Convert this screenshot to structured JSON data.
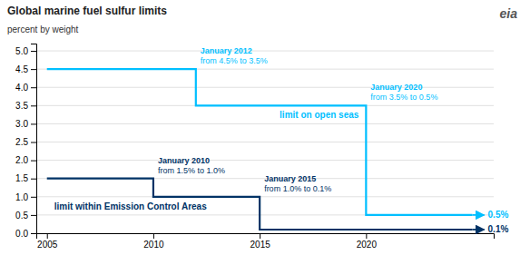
{
  "chart_data": {
    "type": "line",
    "title": "Global marine fuel sulfur limits",
    "ylabel": "percent by weight",
    "xlim": [
      2004.5,
      2026
    ],
    "ylim": [
      0,
      5.2
    ],
    "xticks": [
      2005,
      2010,
      2015,
      2020
    ],
    "yticks": [
      {
        "value": 0.0,
        "label": "0.0"
      },
      0.5,
      {
        "value": 1.0,
        "label": "1.0"
      },
      1.5,
      {
        "value": 2.0,
        "label": "2.0"
      },
      2.5,
      {
        "value": 3.0,
        "label": "3.0"
      },
      3.5,
      {
        "value": 4.0,
        "label": "4.0"
      },
      4.5,
      {
        "value": 5.0,
        "label": "5.0"
      }
    ],
    "grid": true,
    "series": [
      {
        "name": "limit on open seas",
        "color": "#00BFFF",
        "x": [
          2005,
          2012,
          2012,
          2020,
          2020,
          2025
        ],
        "values": [
          4.5,
          4.5,
          3.5,
          3.5,
          0.5,
          0.5
        ],
        "value_labels": [
          null,
          null,
          null,
          null,
          null,
          "0.5%"
        ]
      },
      {
        "name": "limit within Emission Control Areas",
        "color": "#003366",
        "x": [
          2005,
          2010,
          2010,
          2015,
          2015,
          2025
        ],
        "values": [
          1.5,
          1.5,
          1.0,
          1.0,
          0.1,
          0.1
        ],
        "value_labels": [
          null,
          null,
          null,
          null,
          null,
          "0.1%"
        ]
      }
    ],
    "annotations": [
      {
        "lines": [
          "January 2012",
          "from 4.5% to 3.5%"
        ],
        "x": 2012,
        "y": 4.5,
        "color": "#00BFFF"
      },
      {
        "lines": [
          "January 2020",
          "from 3.5% to 0.5%"
        ],
        "x": 2020,
        "y": 3.5,
        "color": "#00BFFF"
      },
      {
        "lines": [
          "January 2010",
          "from 1.5% to 1.0%"
        ],
        "x": 2010,
        "y": 1.5,
        "color": "#003366"
      },
      {
        "lines": [
          "January 2015",
          "from 1.0% to 0.1%"
        ],
        "x": 2015,
        "y": 1.0,
        "color": "#003366"
      },
      {
        "lines": [
          "eia"
        ]
      }
    ]
  }
}
